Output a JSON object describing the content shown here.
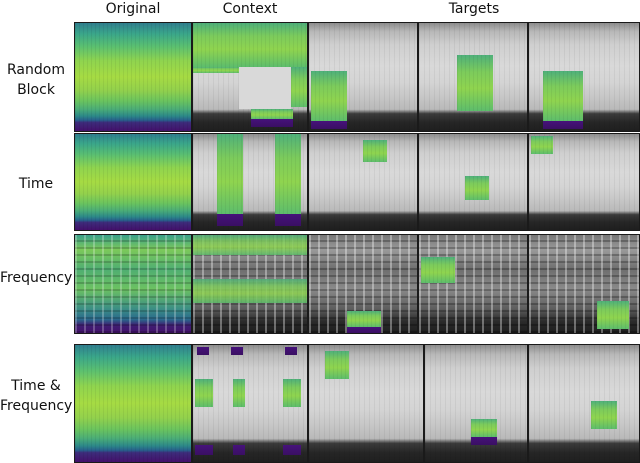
{
  "headers": {
    "original": "Original",
    "context": "Context",
    "targets": "Targets"
  },
  "rows": [
    {
      "label_line1": "Random",
      "label_line2": "Block"
    },
    {
      "label_line1": "Time",
      "label_line2": ""
    },
    {
      "label_line1": "Frequency",
      "label_line2": ""
    },
    {
      "label_line1": "Time &",
      "label_line2": "Frequency"
    }
  ],
  "colors": {
    "viridis_green": "#8fd44f",
    "viridis_teal": "#2f7f8e",
    "viridis_purple": "#43106b",
    "grayscale_bg": "#d9d9d9"
  }
}
